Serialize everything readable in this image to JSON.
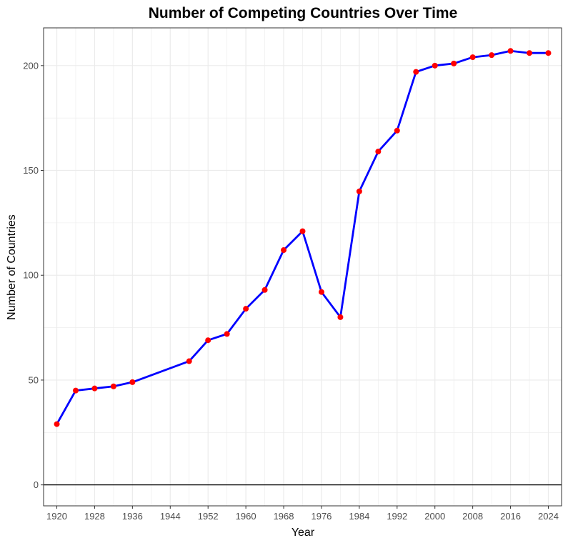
{
  "chart_data": {
    "type": "line",
    "title": "Number of Competing Countries Over Time",
    "xlabel": "Year",
    "ylabel": "Number of Countries",
    "xlim": [
      1917.2,
      2026.8
    ],
    "ylim": [
      -10,
      218
    ],
    "x_ticks": [
      1920,
      1928,
      1936,
      1944,
      1952,
      1960,
      1968,
      1976,
      1984,
      1992,
      2000,
      2008,
      2016,
      2024
    ],
    "y_ticks": [
      0,
      50,
      100,
      150,
      200
    ],
    "grid": true,
    "legend": "none",
    "reference_line": 0,
    "colors": {
      "line": "#0000ff",
      "points": "#ff0000",
      "grid": "#ebebeb",
      "panel_border": "#333333",
      "reference_line": "#000000"
    },
    "series": [
      {
        "x": [
          1920,
          1924,
          1928,
          1932,
          1936,
          1948,
          1952,
          1956,
          1960,
          1964,
          1968,
          1972,
          1976,
          1980,
          1984,
          1988,
          1992,
          1996,
          2000,
          2004,
          2008,
          2012,
          2016,
          2020,
          2024
        ],
        "values": [
          29,
          45,
          46,
          47,
          49,
          59,
          69,
          72,
          84,
          93,
          112,
          121,
          92,
          80,
          140,
          159,
          169,
          197,
          200,
          201,
          204,
          205,
          207,
          206,
          206
        ]
      }
    ]
  }
}
